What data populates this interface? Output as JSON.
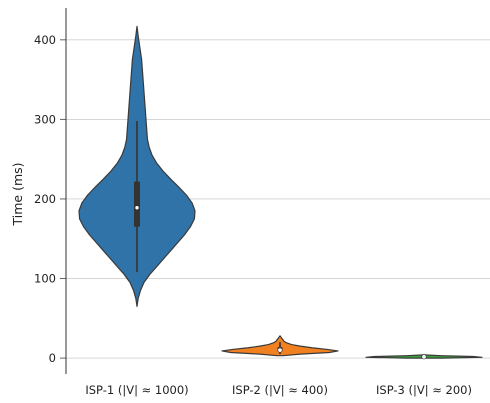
{
  "chart_data": {
    "type": "violin",
    "ylabel": "Time (ms)",
    "xlabel": "",
    "ylim": [
      -20,
      440
    ],
    "yticks": [
      0,
      100,
      200,
      300,
      400
    ],
    "grid": "horizontal",
    "categories": [
      "ISP-1 (|V| ≈ 1000)",
      "ISP-2 (|V| ≈ 400)",
      "ISP-3 (|V| ≈ 200)"
    ],
    "series": [
      {
        "category": "ISP-1 (|V| ≈ 1000)",
        "color": "#2f73a8",
        "min": 65,
        "whisker_low": 108,
        "q1": 165,
        "median": 189,
        "q3": 222,
        "whisker_high": 298,
        "max": 417,
        "density": [
          [
            65,
            0.0
          ],
          [
            75,
            0.02
          ],
          [
            85,
            0.06
          ],
          [
            95,
            0.12
          ],
          [
            105,
            0.22
          ],
          [
            115,
            0.34
          ],
          [
            125,
            0.46
          ],
          [
            135,
            0.58
          ],
          [
            145,
            0.7
          ],
          [
            155,
            0.82
          ],
          [
            165,
            0.92
          ],
          [
            175,
            0.99
          ],
          [
            185,
            1.0
          ],
          [
            195,
            0.95
          ],
          [
            205,
            0.85
          ],
          [
            215,
            0.72
          ],
          [
            225,
            0.58
          ],
          [
            235,
            0.45
          ],
          [
            245,
            0.34
          ],
          [
            255,
            0.26
          ],
          [
            265,
            0.21
          ],
          [
            275,
            0.18
          ],
          [
            285,
            0.17
          ],
          [
            295,
            0.16
          ],
          [
            305,
            0.15
          ],
          [
            315,
            0.14
          ],
          [
            325,
            0.13
          ],
          [
            335,
            0.12
          ],
          [
            345,
            0.11
          ],
          [
            355,
            0.1
          ],
          [
            365,
            0.09
          ],
          [
            375,
            0.08
          ],
          [
            385,
            0.06
          ],
          [
            395,
            0.04
          ],
          [
            405,
            0.02
          ],
          [
            417,
            0.0
          ]
        ]
      },
      {
        "category": "ISP-2 (|V| ≈ 400)",
        "color": "#f08020",
        "min": 3,
        "whisker_low": 5,
        "q1": 8,
        "median": 10,
        "q3": 14,
        "whisker_high": 20,
        "max": 28,
        "density": [
          [
            3,
            0.05
          ],
          [
            5,
            0.35
          ],
          [
            7,
            0.85
          ],
          [
            9,
            1.0
          ],
          [
            11,
            0.8
          ],
          [
            13,
            0.55
          ],
          [
            15,
            0.35
          ],
          [
            17,
            0.2
          ],
          [
            19,
            0.12
          ],
          [
            21,
            0.07
          ],
          [
            23,
            0.05
          ],
          [
            25,
            0.03
          ],
          [
            28,
            0.0
          ]
        ]
      },
      {
        "category": "ISP-3 (|V| ≈ 200)",
        "color": "#3aa23a",
        "min": 0,
        "whisker_low": 0.5,
        "q1": 1,
        "median": 1.5,
        "q3": 2,
        "whisker_high": 3,
        "max": 4,
        "density": [
          [
            0,
            0.3
          ],
          [
            1,
            1.0
          ],
          [
            2,
            0.85
          ],
          [
            3,
            0.3
          ],
          [
            4,
            0.0
          ]
        ]
      }
    ]
  }
}
